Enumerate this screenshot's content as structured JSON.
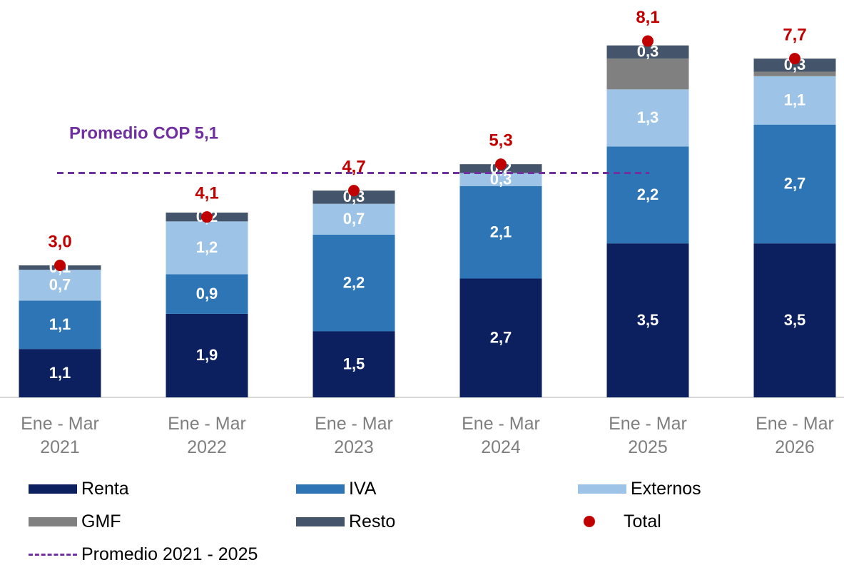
{
  "chart_data": {
    "type": "stacked-bar",
    "categories": [
      "Ene - Mar 2021",
      "Ene - Mar 2022",
      "Ene - Mar 2023",
      "Ene - Mar 2024",
      "Ene - Mar 2025",
      "Ene - Mar 2026"
    ],
    "series": [
      {
        "name": "Renta",
        "color": "#0c1f5e",
        "values": [
          1.1,
          1.9,
          1.5,
          2.7,
          3.5,
          3.5
        ],
        "value_labels": [
          "1,1",
          "1,9",
          "1,5",
          "2,7",
          "3,5",
          "3,5"
        ]
      },
      {
        "name": "IVA",
        "color": "#2e75b6",
        "values": [
          1.1,
          0.9,
          2.2,
          2.1,
          2.2,
          2.7
        ],
        "value_labels": [
          "1,1",
          "0,9",
          "2,2",
          "2,1",
          "2,2",
          "2,7"
        ]
      },
      {
        "name": "Externos",
        "color": "#9dc3e6",
        "values": [
          0.7,
          1.2,
          0.7,
          0.3,
          1.3,
          1.1
        ],
        "value_labels": [
          "0,7",
          "1,2",
          "0,7",
          "0,3",
          "1,3",
          "1,1"
        ]
      },
      {
        "name": "GMF",
        "color": "#808080",
        "values": [
          0,
          0,
          0,
          0,
          0.7,
          0.1
        ]
      },
      {
        "name": "Resto",
        "color": "#44546a",
        "values": [
          0.1,
          0.2,
          0.3,
          0.2,
          0.3,
          0.3
        ],
        "value_labels": [
          "0,1",
          "0,2",
          "0,3",
          "0,2",
          "0,3",
          "0,3"
        ]
      }
    ],
    "totals": {
      "name": "Total",
      "color": "#c00000",
      "values": [
        3.0,
        4.1,
        4.7,
        5.3,
        8.1,
        7.7
      ],
      "value_labels": [
        "3,0",
        "4,1",
        "4,7",
        "5,3",
        "8,1",
        "7,7"
      ]
    },
    "reference_line": {
      "name": "Promedio 2021 - 2025",
      "value": 5.1,
      "color": "#7030a0",
      "annotation": "Promedio COP 5,1"
    },
    "ylim": [
      0,
      9
    ]
  }
}
